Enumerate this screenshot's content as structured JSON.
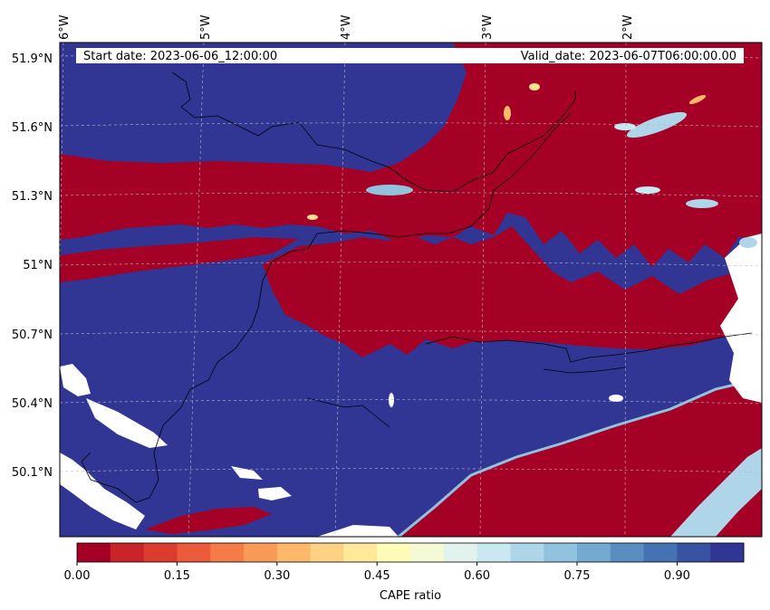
{
  "map": {
    "start_label": "Start date: 2023-06-06_12:00:00",
    "valid_label": "Valid_date: 2023-06-07T06:00:00.00",
    "longitude_labels": [
      "6°W",
      "5°W",
      "4°W",
      "3°W",
      "2°W"
    ],
    "latitude_labels": [
      "51.9°N",
      "51.6°N",
      "51.3°N",
      "51°N",
      "50.7°N",
      "50.4°N",
      "50.1°N"
    ],
    "colors": {
      "high": "#313695",
      "low": "#a50026",
      "mid": "#fee090",
      "coast": "#000000",
      "grid": "#b0b0b0"
    }
  },
  "colorbar": {
    "label": "CAPE ratio",
    "ticks": [
      "0.00",
      "0.15",
      "0.30",
      "0.45",
      "0.60",
      "0.75",
      "0.90"
    ],
    "colors": [
      "#a50026",
      "#c8242a",
      "#dc3c2e",
      "#ea5a3b",
      "#f57b48",
      "#fa9a59",
      "#fdb869",
      "#fed283",
      "#fee99b",
      "#fffbb8",
      "#f4fbd4",
      "#e1f3ec",
      "#c9e8f1",
      "#aed6e8",
      "#92c3de",
      "#75aad0",
      "#5a8ec1",
      "#4572b2",
      "#3753a2",
      "#313695"
    ],
    "min": 0.0,
    "max": 1.0
  }
}
